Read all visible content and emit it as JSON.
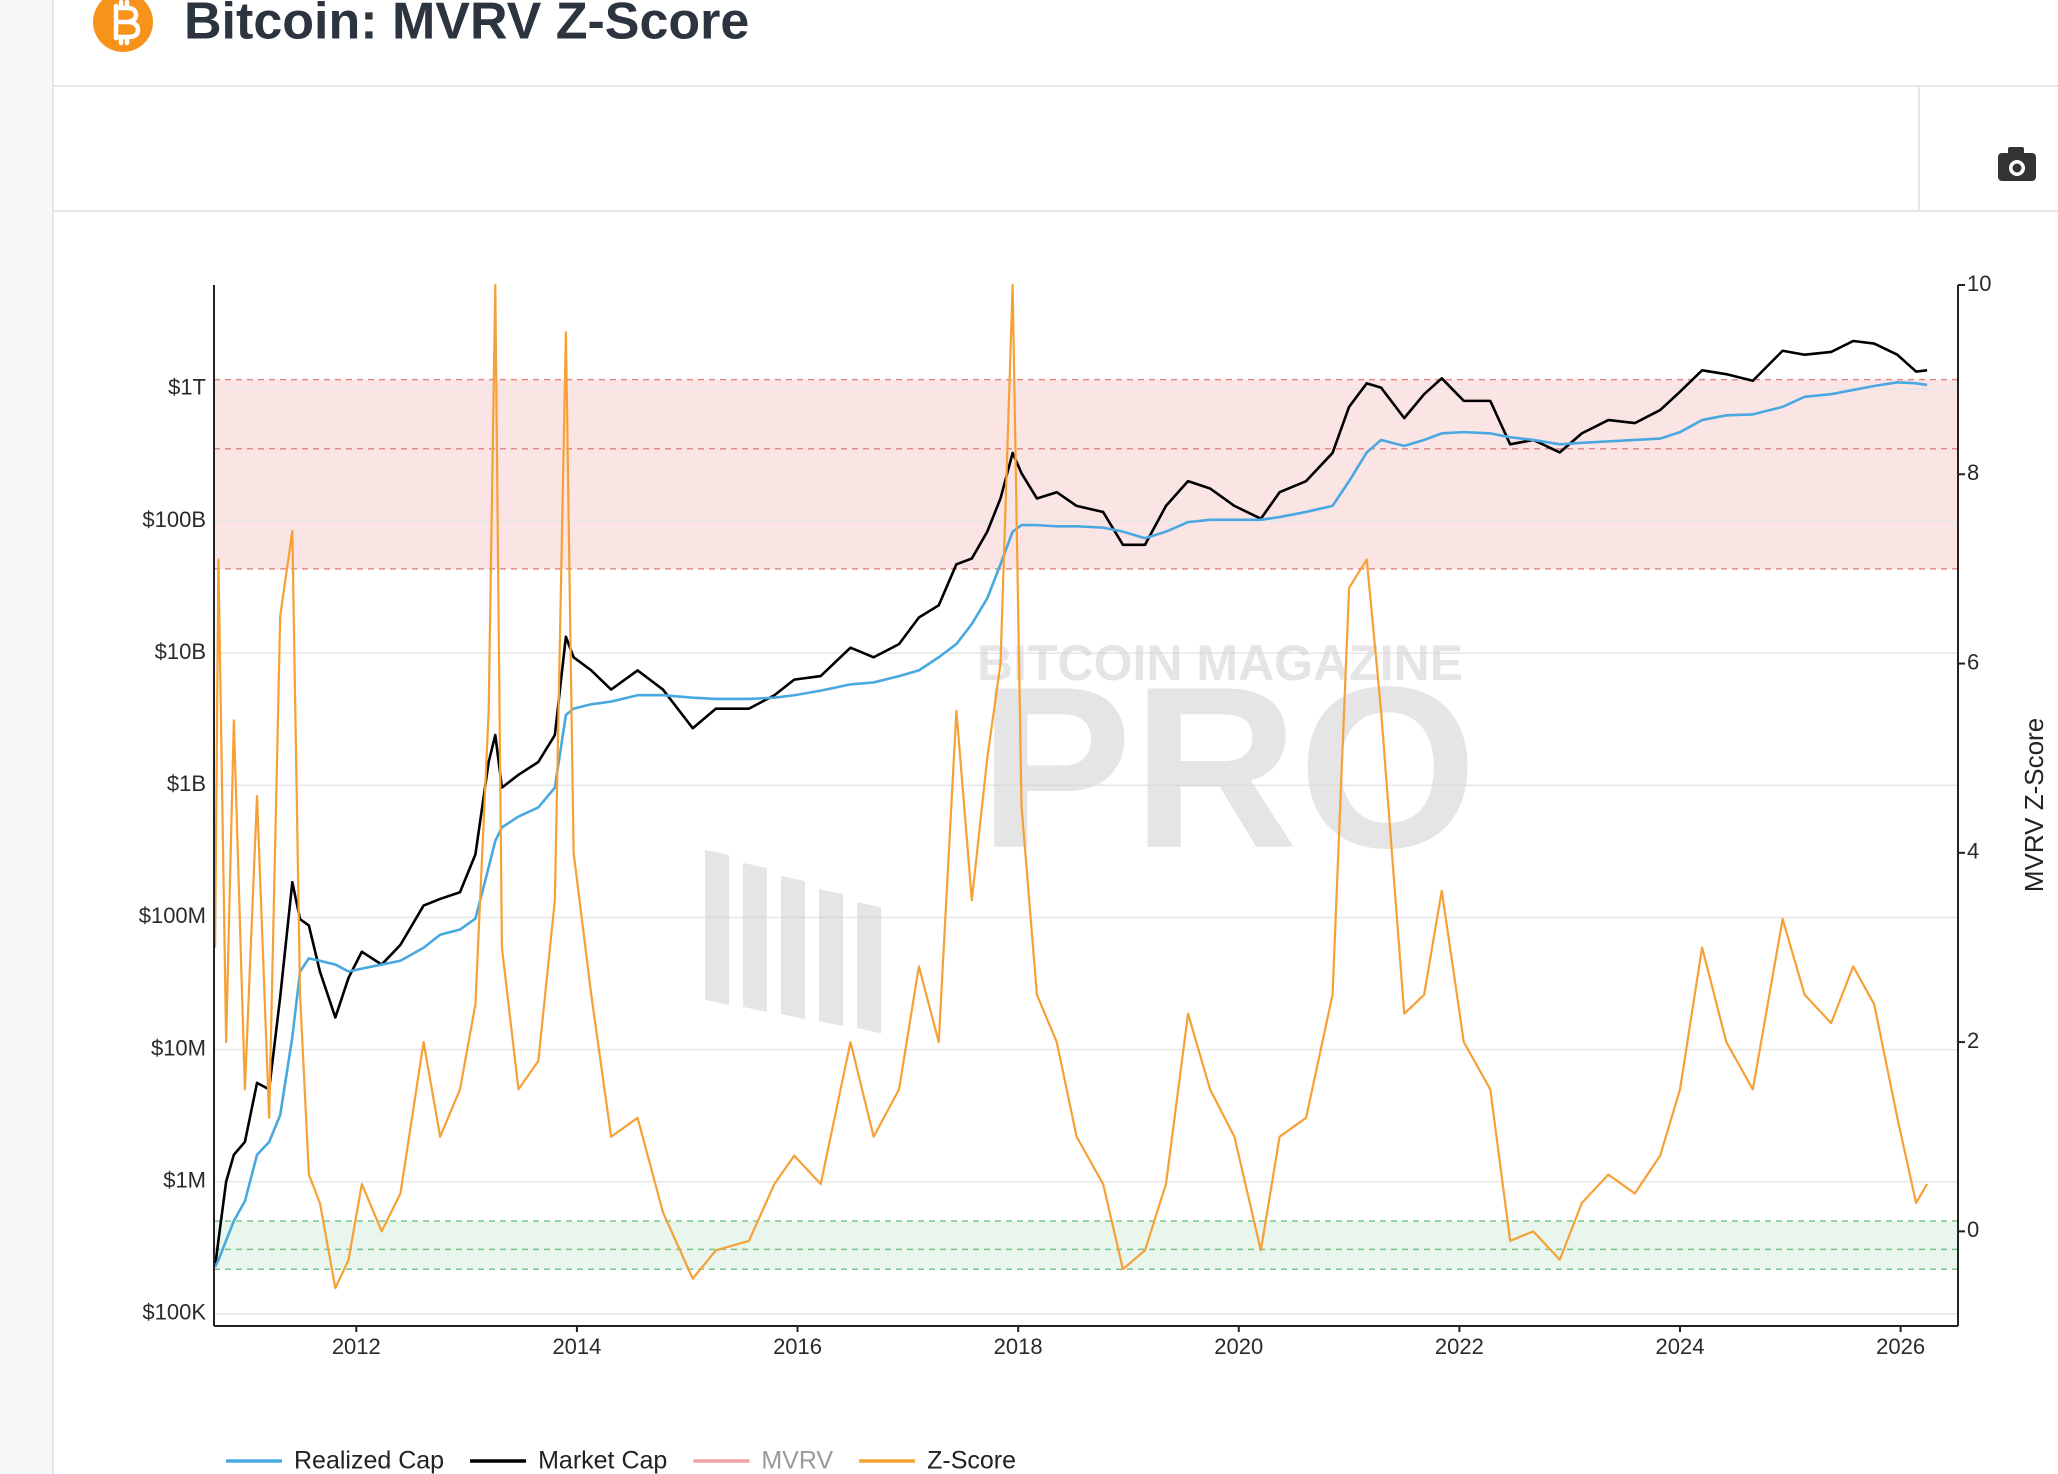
{
  "header": {
    "title": "Bitcoin: MVRV Z-Score"
  },
  "chart_data": {
    "type": "line",
    "y_axis_title": "MVRV Z-Score",
    "watermark": [
      "BITCOIN MAGAZINE",
      "PRO"
    ],
    "x": [
      2010.72,
      2010.75,
      2010.82,
      2010.89,
      2010.99,
      2011.1,
      2011.21,
      2011.31,
      2011.42,
      2011.49,
      2011.57,
      2011.67,
      2011.81,
      2011.93,
      2012.05,
      2012.23,
      2012.4,
      2012.61,
      2012.76,
      2012.94,
      2013.08,
      2013.2,
      2013.26,
      2013.32,
      2013.47,
      2013.65,
      2013.8,
      2013.9,
      2013.97,
      2014.13,
      2014.31,
      2014.55,
      2014.78,
      2015.05,
      2015.26,
      2015.56,
      2015.79,
      2015.97,
      2016.21,
      2016.48,
      2016.69,
      2016.92,
      2017.1,
      2017.28,
      2017.44,
      2017.58,
      2017.72,
      2017.84,
      2017.95,
      2018.03,
      2018.17,
      2018.35,
      2018.53,
      2018.77,
      2018.95,
      2019.15,
      2019.34,
      2019.54,
      2019.74,
      2019.96,
      2020.2,
      2020.37,
      2020.61,
      2020.85,
      2021.0,
      2021.16,
      2021.29,
      2021.5,
      2021.68,
      2021.84,
      2022.04,
      2022.28,
      2022.46,
      2022.67,
      2022.91,
      2023.11,
      2023.35,
      2023.59,
      2023.82,
      2024.0,
      2024.2,
      2024.42,
      2024.66,
      2024.93,
      2025.13,
      2025.37,
      2025.57,
      2025.76,
      2025.97,
      2026.14,
      2026.24
    ],
    "series": [
      {
        "name": "Realized Cap",
        "color": "#4aa8e0",
        "axis": "y",
        "values": [
          227000,
          255000,
          359000,
          506000,
          713000,
          1600000.0,
          2000000.0,
          3200000.0,
          12400000.0,
          39000000.0,
          49000000.0,
          47000000.0,
          44000000.0,
          39000000.0,
          41000000.0,
          44000000.0,
          47000000.0,
          59000000.0,
          74000000.0,
          81000000.0,
          98000000.0,
          240000000.0,
          380000000.0,
          480000000.0,
          580000000.0,
          680000000.0,
          960000000.0,
          3400000000.0,
          3800000000.0,
          4100000000.0,
          4300000000.0,
          4800000000.0,
          4800000000.0,
          4600000000.0,
          4500000000.0,
          4500000000.0,
          4600000000.0,
          4800000000.0,
          5200000000.0,
          5800000000.0,
          6000000000.0,
          6700000000.0,
          7400000000.0,
          9300000000.0,
          11700000000.0,
          16600000000.0,
          26000000000.0,
          47000000000.0,
          83000000000.0,
          93000000000.0,
          93000000000.0,
          91000000000.0,
          91000000000.0,
          89000000000.0,
          83000000000.0,
          74000000000.0,
          83000000000.0,
          98000000000.0,
          102000000000.0,
          102000000000.0,
          102000000000.0,
          107000000000.0,
          117000000000.0,
          130000000000.0,
          200000000000.0,
          330000000000.0,
          410000000000.0,
          370000000000.0,
          410000000000.0,
          460000000000.0,
          470000000000.0,
          460000000000.0,
          430000000000.0,
          410000000000.0,
          380000000000.0,
          390000000000.0,
          400000000000.0,
          410000000000.0,
          420000000000.0,
          470000000000.0,
          580000000000.0,
          630000000000.0,
          640000000000.0,
          730000000000.0,
          870000000000.0,
          910000000000.0,
          980000000000.0,
          1050000000000.0,
          1120000000000.0,
          1100000000000.0,
          1070000000000.0
        ]
      },
      {
        "name": "Market Cap",
        "color": "#000000",
        "axis": "y",
        "values": [
          227000,
          359000,
          1000000.0,
          1600000.0,
          2000000.0,
          5600000.0,
          5000000.0,
          25000000.0,
          185000000.0,
          97000000.0,
          87000000.0,
          39000000.0,
          17500000.0,
          35000000.0,
          55000000.0,
          44000000.0,
          62000000.0,
          123000000.0,
          138000000.0,
          155000000.0,
          300000000.0,
          1500000000.0,
          2400000000.0,
          960000000.0,
          1200000000.0,
          1500000000.0,
          2400000000.0,
          13300000000.0,
          9300000000.0,
          7400000000.0,
          5300000000.0,
          7400000000.0,
          5300000000.0,
          2700000000.0,
          3800000000.0,
          3800000000.0,
          4800000000.0,
          6300000000.0,
          6700000000.0,
          11000000000.0,
          9300000000.0,
          11700000000.0,
          18600000000.0,
          23000000000.0,
          47000000000.0,
          52000000000.0,
          83000000000.0,
          148000000000.0,
          327000000000.0,
          230000000000.0,
          148000000000.0,
          165000000000.0,
          130000000000.0,
          117000000000.0,
          66000000000.0,
          66000000000.0,
          130000000000.0,
          200000000000.0,
          176000000000.0,
          130000000000.0,
          104000000000.0,
          165000000000.0,
          200000000000.0,
          327000000000.0,
          730000000000.0,
          1100000000000.0,
          1020000000000.0,
          600000000000.0,
          910000000000.0,
          1200000000000.0,
          810000000000.0,
          810000000000.0,
          380000000000.0,
          410000000000.0,
          330000000000.0,
          460000000000.0,
          580000000000.0,
          550000000000.0,
          690000000000.0,
          950000000000.0,
          1380000000000.0,
          1290000000000.0,
          1150000000000.0,
          1940000000000.0,
          1810000000000.0,
          1900000000000.0,
          2300000000000.0,
          2200000000000.0,
          1810000000000.0,
          1350000000000.0,
          1380000000000.0
        ]
      },
      {
        "name": "MVRV",
        "color": "#f0a0a0",
        "axis": "y2",
        "visible": false
      },
      {
        "name": "Z-Score",
        "color": "#f7a035",
        "axis": "y2",
        "values": [
          3.0,
          7.1,
          2.0,
          5.4,
          1.5,
          4.6,
          1.2,
          6.5,
          7.4,
          2.5,
          0.6,
          0.3,
          -0.6,
          -0.3,
          0.5,
          0.0,
          0.4,
          2.0,
          1.0,
          1.5,
          2.4,
          5.5,
          10.0,
          3.0,
          1.5,
          1.8,
          3.5,
          9.5,
          4.0,
          2.5,
          1.0,
          1.2,
          0.2,
          -0.5,
          -0.2,
          -0.1,
          0.5,
          0.8,
          0.5,
          2.0,
          1.0,
          1.5,
          2.8,
          2.0,
          5.5,
          3.5,
          5.0,
          6.0,
          10.0,
          4.5,
          2.5,
          2.0,
          1.0,
          0.5,
          -0.4,
          -0.2,
          0.5,
          2.3,
          1.5,
          1.0,
          -0.2,
          1.0,
          1.2,
          2.5,
          6.8,
          7.1,
          5.5,
          2.3,
          2.5,
          3.6,
          2.0,
          1.5,
          -0.1,
          0.0,
          -0.3,
          0.3,
          0.6,
          0.4,
          0.8,
          1.5,
          3.0,
          2.0,
          1.5,
          3.3,
          2.5,
          2.2,
          2.8,
          2.4,
          1.2,
          0.3,
          0.5
        ]
      }
    ],
    "xlim": [
      2010.71,
      2026.52
    ],
    "xticks": [
      2012,
      2014,
      2016,
      2018,
      2020,
      2022,
      2024,
      2026
    ],
    "ylog": true,
    "ylim": [
      81000,
      6100000000000.0
    ],
    "yticks": [
      {
        "value": 100000,
        "label": "$100K"
      },
      {
        "value": 1000000,
        "label": "$1M"
      },
      {
        "value": 10000000,
        "label": "$10M"
      },
      {
        "value": 100000000,
        "label": "$100M"
      },
      {
        "value": 1000000000,
        "label": "$1B"
      },
      {
        "value": 10000000000,
        "label": "$10B"
      },
      {
        "value": 100000000000,
        "label": "$100B"
      },
      {
        "value": 1000000000000,
        "label": "$1T"
      }
    ],
    "y2lim": [
      -1,
      10
    ],
    "y2ticks": [
      0,
      2,
      4,
      6,
      8,
      10
    ],
    "bands": [
      {
        "y2": [
          7,
          9
        ],
        "dashes": [
          7,
          8.27,
          9
        ],
        "color": "#fbe4e4",
        "line_color": "#e08a8a"
      },
      {
        "y2": [
          -0.4,
          0.11
        ],
        "dashes": [
          -0.4,
          -0.19,
          0.11
        ],
        "color": "#e8f6ed",
        "line_color": "#7cc48a"
      }
    ],
    "grid": true,
    "legend": "bottom-left"
  }
}
